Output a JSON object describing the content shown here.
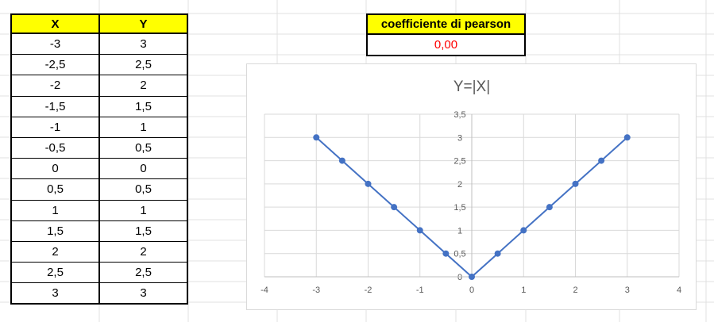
{
  "table": {
    "headers": [
      "X",
      "Y"
    ],
    "rows": [
      [
        "-3",
        "3"
      ],
      [
        "-2,5",
        "2,5"
      ],
      [
        "-2",
        "2"
      ],
      [
        "-1,5",
        "1,5"
      ],
      [
        "-1",
        "1"
      ],
      [
        "-0,5",
        "0,5"
      ],
      [
        "0",
        "0"
      ],
      [
        "0,5",
        "0,5"
      ],
      [
        "1",
        "1"
      ],
      [
        "1,5",
        "1,5"
      ],
      [
        "2",
        "2"
      ],
      [
        "2,5",
        "2,5"
      ],
      [
        "3",
        "3"
      ]
    ]
  },
  "pearson": {
    "label": "coefficiente di pearson",
    "value": "0,00",
    "value_color": "#ff0000"
  },
  "colors": {
    "header_fill": "#ffff00",
    "series": "#4472c4",
    "gridline": "#d9d9d9",
    "axis_text": "#595959"
  },
  "chart_data": {
    "type": "scatter",
    "title": "Y=|X|",
    "xlabel": "",
    "ylabel": "",
    "xlim": [
      -4,
      4
    ],
    "ylim": [
      0,
      3.5
    ],
    "x_ticks": [
      "-4",
      "-3",
      "-2",
      "-1",
      "0",
      "1",
      "2",
      "3",
      "4"
    ],
    "y_ticks": [
      "0",
      "0,5",
      "1",
      "1,5",
      "2",
      "2,5",
      "3",
      "3,5"
    ],
    "grid": true,
    "legend": "none",
    "series": [
      {
        "x": [
          -3,
          -2.5,
          -2,
          -1.5,
          -1,
          -0.5,
          0,
          0.5,
          1,
          1.5,
          2,
          2.5,
          3
        ],
        "y": [
          3,
          2.5,
          2,
          1.5,
          1,
          0.5,
          0,
          0.5,
          1,
          1.5,
          2,
          2.5,
          3
        ],
        "color": "#4472c4"
      }
    ]
  }
}
